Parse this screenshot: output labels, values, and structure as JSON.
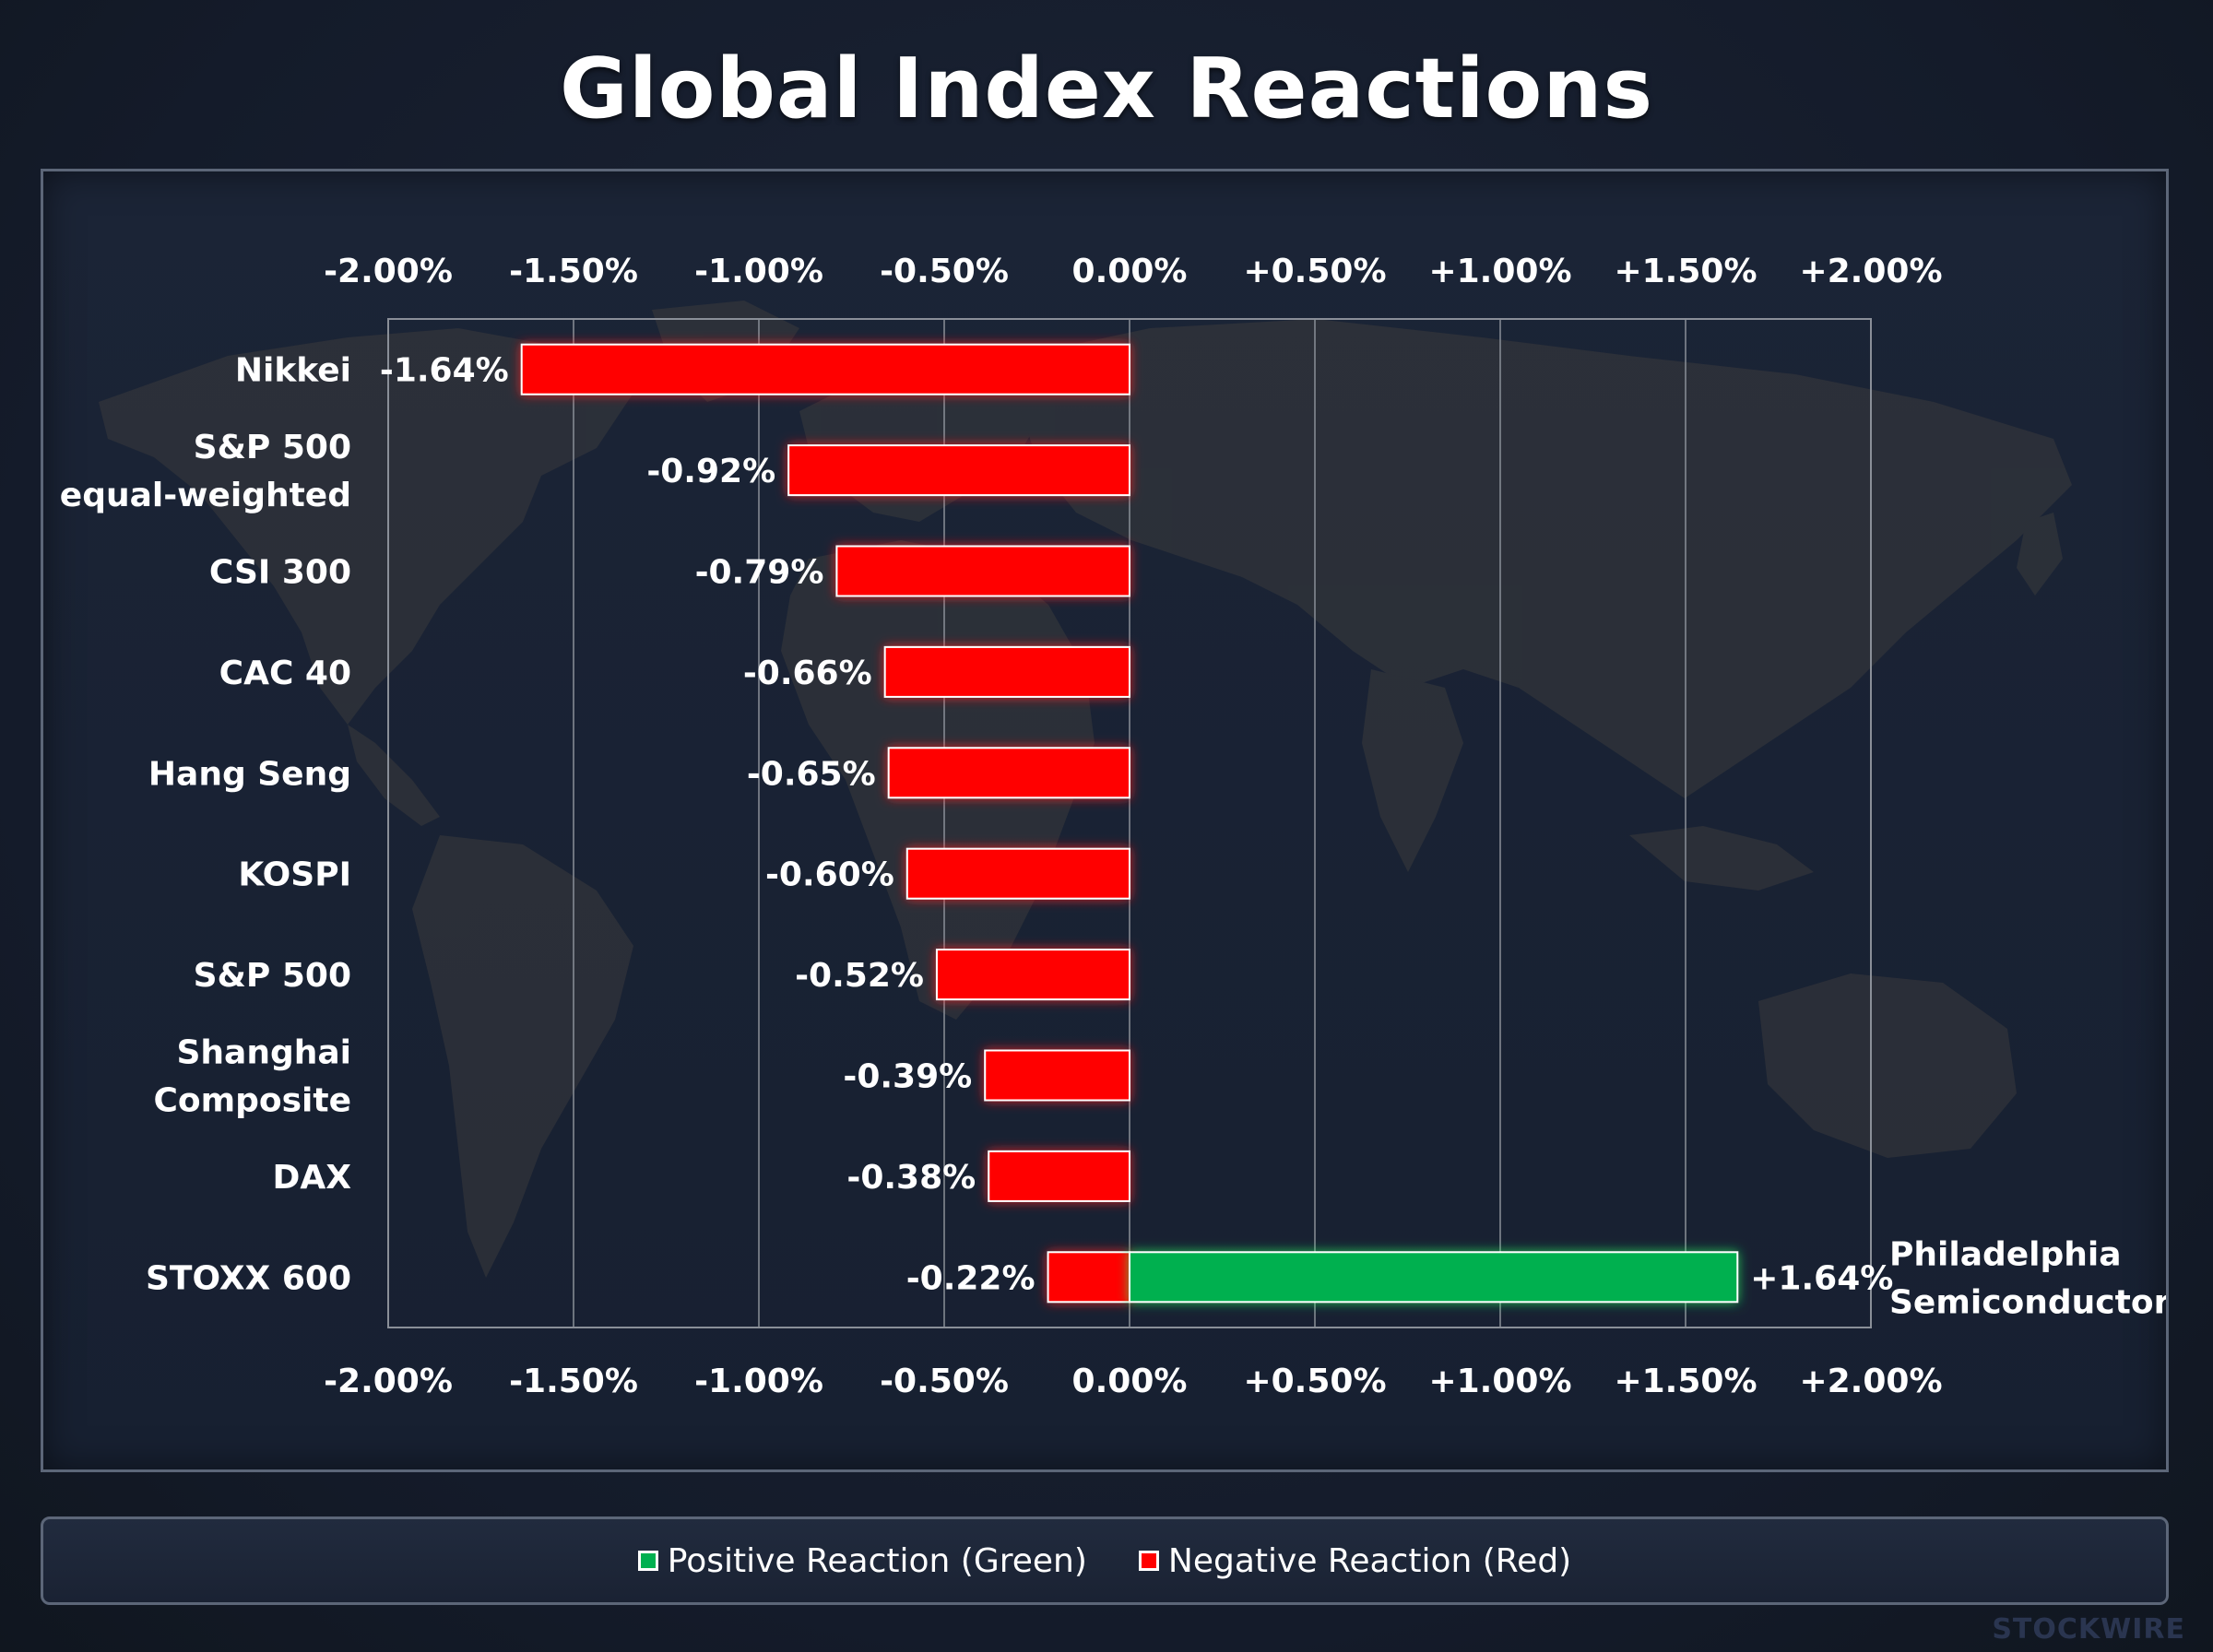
{
  "title": "Global Index Reactions",
  "watermark": "STOCKWIRE",
  "legend": {
    "positive_label": "Positive Reaction (Green)",
    "negative_label": "Negative Reaction (Red)",
    "positive_color": "#00b050",
    "negative_color": "#ff0000"
  },
  "chart_data": {
    "type": "bar",
    "orientation": "horizontal",
    "background": "world-map",
    "xlim": [
      -2.0,
      2.0
    ],
    "grid": true,
    "x_ticks": [
      "-2.00%",
      "-1.50%",
      "-1.00%",
      "-0.50%",
      "0.00%",
      "+0.50%",
      "+1.00%",
      "+1.50%",
      "+2.00%"
    ],
    "x_tick_values": [
      -2.0,
      -1.5,
      -1.0,
      -0.5,
      0.0,
      0.5,
      1.0,
      1.5,
      2.0
    ],
    "bars": [
      {
        "category": "Nikkei",
        "value": -1.64,
        "label": "-1.64%"
      },
      {
        "category": "S&P 500\nequal-weighted",
        "value": -0.92,
        "label": "-0.92%"
      },
      {
        "category": "CSI 300",
        "value": -0.79,
        "label": "-0.79%"
      },
      {
        "category": "CAC 40",
        "value": -0.66,
        "label": "-0.66%"
      },
      {
        "category": "Hang Seng",
        "value": -0.65,
        "label": "-0.65%"
      },
      {
        "category": "KOSPI",
        "value": -0.6,
        "label": "-0.60%"
      },
      {
        "category": "S&P 500",
        "value": -0.52,
        "label": "-0.52%"
      },
      {
        "category": "Shanghai\nComposite",
        "value": -0.39,
        "label": "-0.39%"
      },
      {
        "category": "DAX",
        "value": -0.38,
        "label": "-0.38%"
      },
      {
        "category": "STOXX 600",
        "value": -0.22,
        "label": "-0.22%"
      }
    ],
    "extra_bars": [
      {
        "category": "Philadelphia\nSemiconductor",
        "value": 1.64,
        "label": "+1.64%",
        "row": 9
      }
    ]
  }
}
